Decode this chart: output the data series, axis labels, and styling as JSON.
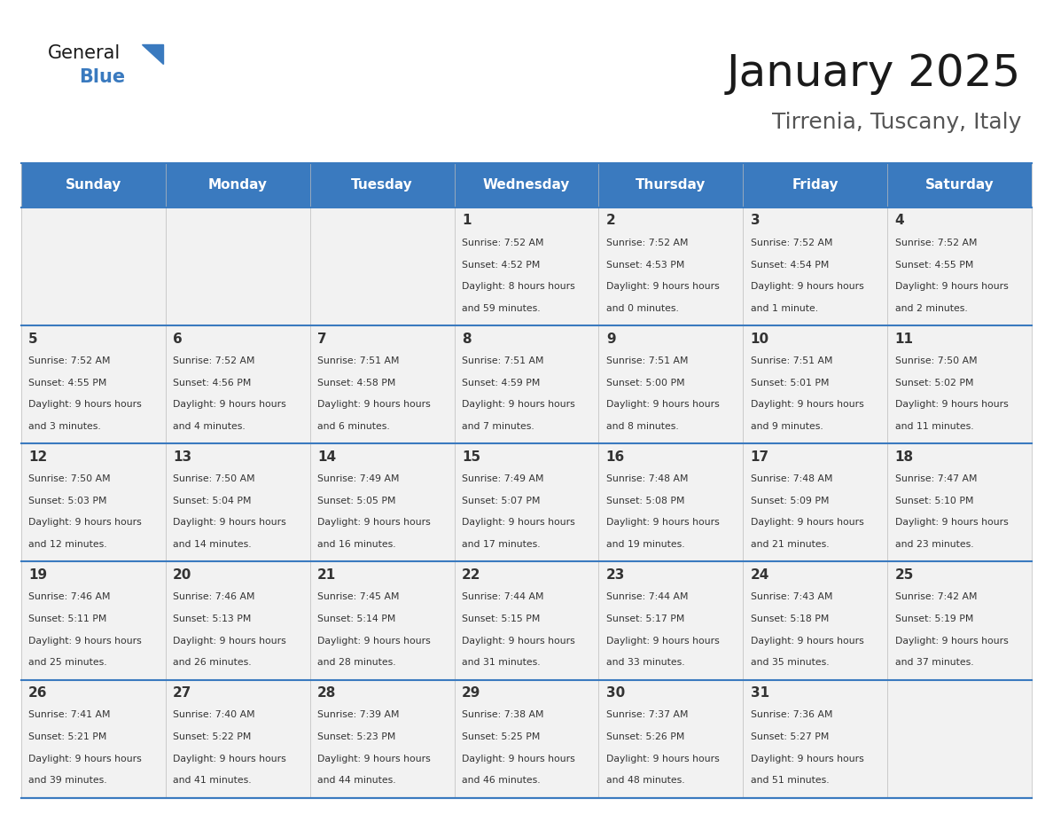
{
  "title": "January 2025",
  "subtitle": "Tirrenia, Tuscany, Italy",
  "header_color": "#3a7abf",
  "header_text_color": "#ffffff",
  "cell_bg_color": "#f2f2f2",
  "cell_bg_alt": "#ffffff",
  "border_color": "#3a7abf",
  "text_color": "#333333",
  "days_of_week": [
    "Sunday",
    "Monday",
    "Tuesday",
    "Wednesday",
    "Thursday",
    "Friday",
    "Saturday"
  ],
  "calendar_data": [
    [
      {
        "day": null,
        "info": null
      },
      {
        "day": null,
        "info": null
      },
      {
        "day": null,
        "info": null
      },
      {
        "day": 1,
        "info": {
          "sunrise": "7:52 AM",
          "sunset": "4:52 PM",
          "daylight": "8 hours and 59 minutes"
        }
      },
      {
        "day": 2,
        "info": {
          "sunrise": "7:52 AM",
          "sunset": "4:53 PM",
          "daylight": "9 hours and 0 minutes"
        }
      },
      {
        "day": 3,
        "info": {
          "sunrise": "7:52 AM",
          "sunset": "4:54 PM",
          "daylight": "9 hours and 1 minute"
        }
      },
      {
        "day": 4,
        "info": {
          "sunrise": "7:52 AM",
          "sunset": "4:55 PM",
          "daylight": "9 hours and 2 minutes"
        }
      }
    ],
    [
      {
        "day": 5,
        "info": {
          "sunrise": "7:52 AM",
          "sunset": "4:55 PM",
          "daylight": "9 hours and 3 minutes"
        }
      },
      {
        "day": 6,
        "info": {
          "sunrise": "7:52 AM",
          "sunset": "4:56 PM",
          "daylight": "9 hours and 4 minutes"
        }
      },
      {
        "day": 7,
        "info": {
          "sunrise": "7:51 AM",
          "sunset": "4:58 PM",
          "daylight": "9 hours and 6 minutes"
        }
      },
      {
        "day": 8,
        "info": {
          "sunrise": "7:51 AM",
          "sunset": "4:59 PM",
          "daylight": "9 hours and 7 minutes"
        }
      },
      {
        "day": 9,
        "info": {
          "sunrise": "7:51 AM",
          "sunset": "5:00 PM",
          "daylight": "9 hours and 8 minutes"
        }
      },
      {
        "day": 10,
        "info": {
          "sunrise": "7:51 AM",
          "sunset": "5:01 PM",
          "daylight": "9 hours and 9 minutes"
        }
      },
      {
        "day": 11,
        "info": {
          "sunrise": "7:50 AM",
          "sunset": "5:02 PM",
          "daylight": "9 hours and 11 minutes"
        }
      }
    ],
    [
      {
        "day": 12,
        "info": {
          "sunrise": "7:50 AM",
          "sunset": "5:03 PM",
          "daylight": "9 hours and 12 minutes"
        }
      },
      {
        "day": 13,
        "info": {
          "sunrise": "7:50 AM",
          "sunset": "5:04 PM",
          "daylight": "9 hours and 14 minutes"
        }
      },
      {
        "day": 14,
        "info": {
          "sunrise": "7:49 AM",
          "sunset": "5:05 PM",
          "daylight": "9 hours and 16 minutes"
        }
      },
      {
        "day": 15,
        "info": {
          "sunrise": "7:49 AM",
          "sunset": "5:07 PM",
          "daylight": "9 hours and 17 minutes"
        }
      },
      {
        "day": 16,
        "info": {
          "sunrise": "7:48 AM",
          "sunset": "5:08 PM",
          "daylight": "9 hours and 19 minutes"
        }
      },
      {
        "day": 17,
        "info": {
          "sunrise": "7:48 AM",
          "sunset": "5:09 PM",
          "daylight": "9 hours and 21 minutes"
        }
      },
      {
        "day": 18,
        "info": {
          "sunrise": "7:47 AM",
          "sunset": "5:10 PM",
          "daylight": "9 hours and 23 minutes"
        }
      }
    ],
    [
      {
        "day": 19,
        "info": {
          "sunrise": "7:46 AM",
          "sunset": "5:11 PM",
          "daylight": "9 hours and 25 minutes"
        }
      },
      {
        "day": 20,
        "info": {
          "sunrise": "7:46 AM",
          "sunset": "5:13 PM",
          "daylight": "9 hours and 26 minutes"
        }
      },
      {
        "day": 21,
        "info": {
          "sunrise": "7:45 AM",
          "sunset": "5:14 PM",
          "daylight": "9 hours and 28 minutes"
        }
      },
      {
        "day": 22,
        "info": {
          "sunrise": "7:44 AM",
          "sunset": "5:15 PM",
          "daylight": "9 hours and 31 minutes"
        }
      },
      {
        "day": 23,
        "info": {
          "sunrise": "7:44 AM",
          "sunset": "5:17 PM",
          "daylight": "9 hours and 33 minutes"
        }
      },
      {
        "day": 24,
        "info": {
          "sunrise": "7:43 AM",
          "sunset": "5:18 PM",
          "daylight": "9 hours and 35 minutes"
        }
      },
      {
        "day": 25,
        "info": {
          "sunrise": "7:42 AM",
          "sunset": "5:19 PM",
          "daylight": "9 hours and 37 minutes"
        }
      }
    ],
    [
      {
        "day": 26,
        "info": {
          "sunrise": "7:41 AM",
          "sunset": "5:21 PM",
          "daylight": "9 hours and 39 minutes"
        }
      },
      {
        "day": 27,
        "info": {
          "sunrise": "7:40 AM",
          "sunset": "5:22 PM",
          "daylight": "9 hours and 41 minutes"
        }
      },
      {
        "day": 28,
        "info": {
          "sunrise": "7:39 AM",
          "sunset": "5:23 PM",
          "daylight": "9 hours and 44 minutes"
        }
      },
      {
        "day": 29,
        "info": {
          "sunrise": "7:38 AM",
          "sunset": "5:25 PM",
          "daylight": "9 hours and 46 minutes"
        }
      },
      {
        "day": 30,
        "info": {
          "sunrise": "7:37 AM",
          "sunset": "5:26 PM",
          "daylight": "9 hours and 48 minutes"
        }
      },
      {
        "day": 31,
        "info": {
          "sunrise": "7:36 AM",
          "sunset": "5:27 PM",
          "daylight": "9 hours and 51 minutes"
        }
      },
      {
        "day": null,
        "info": null
      }
    ]
  ],
  "logo_text_general": "General",
  "logo_text_blue": "Blue",
  "logo_color_general": "#1a1a1a",
  "logo_color_blue": "#3a7abf"
}
